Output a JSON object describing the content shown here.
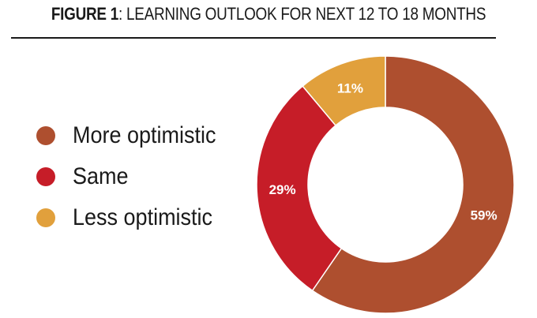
{
  "chart_data": {
    "type": "pie",
    "variant": "donut",
    "title_prefix": "FIGURE 1",
    "title_text": ": LEARNING OUTLOOK FOR NEXT 12 TO 18 MONTHS",
    "categories": [
      "More optimistic",
      "Same",
      "Less optimistic"
    ],
    "values": [
      59,
      29,
      11
    ],
    "labels": [
      "59%",
      "29%",
      "11%"
    ],
    "colors": [
      "#ae4f2f",
      "#c61d28",
      "#e1a03c"
    ],
    "legend_placement": "left",
    "start_angle": "top",
    "direction": "clockwise"
  }
}
